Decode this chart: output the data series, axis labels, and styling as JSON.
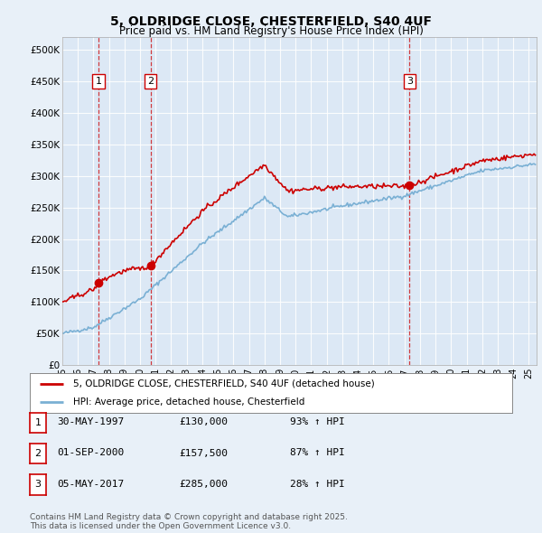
{
  "title_line1": "5, OLDRIDGE CLOSE, CHESTERFIELD, S40 4UF",
  "title_line2": "Price paid vs. HM Land Registry's House Price Index (HPI)",
  "background_color": "#e8f0f8",
  "plot_bg_color": "#dce8f5",
  "red_line_color": "#cc0000",
  "blue_line_color": "#7ab0d4",
  "sale_labels": [
    "1",
    "2",
    "3"
  ],
  "legend_line1": "5, OLDRIDGE CLOSE, CHESTERFIELD, S40 4UF (detached house)",
  "legend_line2": "HPI: Average price, detached house, Chesterfield",
  "table_rows": [
    [
      "1",
      "30-MAY-1997",
      "£130,000",
      "93% ↑ HPI"
    ],
    [
      "2",
      "01-SEP-2000",
      "£157,500",
      "87% ↑ HPI"
    ],
    [
      "3",
      "05-MAY-2017",
      "£285,000",
      "28% ↑ HPI"
    ]
  ],
  "footnote": "Contains HM Land Registry data © Crown copyright and database right 2025.\nThis data is licensed under the Open Government Licence v3.0.",
  "ylim": [
    0,
    520000
  ],
  "yticks": [
    0,
    50000,
    100000,
    150000,
    200000,
    250000,
    300000,
    350000,
    400000,
    450000,
    500000
  ],
  "ytick_labels": [
    "£0",
    "£50K",
    "£100K",
    "£150K",
    "£200K",
    "£250K",
    "£300K",
    "£350K",
    "£400K",
    "£450K",
    "£500K"
  ]
}
